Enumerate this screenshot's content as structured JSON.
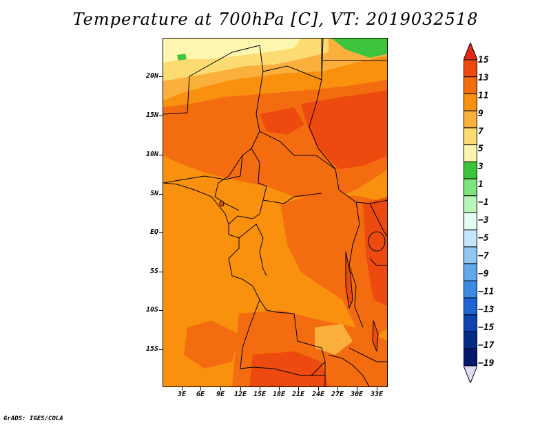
{
  "title": "Temperature at 700hPa [C], VT: 2019032518",
  "credit": "GrADS: IGES/COLA",
  "lat_labels": [
    "20N",
    "15N",
    "10N",
    "5N",
    "EQ",
    "5S",
    "10S",
    "15S"
  ],
  "lon_labels": [
    "3E",
    "6E",
    "9E",
    "12E",
    "15E",
    "18E",
    "21E",
    "24E",
    "27E",
    "30E",
    "33E"
  ],
  "colorbar": {
    "labels": [
      "15",
      "13",
      "11",
      "9",
      "7",
      "5",
      "3",
      "1",
      "−1",
      "−3",
      "−5",
      "−7",
      "−9",
      "−11",
      "−13",
      "−15",
      "−17",
      "−19"
    ],
    "colors": [
      "#e12a0f",
      "#ed4a0f",
      "#f46c10",
      "#f9910e",
      "#fbb03e",
      "#fddb73",
      "#fef6ae",
      "#3cc53c",
      "#7de37d",
      "#b9f4b9",
      "#e3fbf0",
      "#c4e6fb",
      "#90c7f3",
      "#62a9ec",
      "#3b8ae3",
      "#1f64d2",
      "#0f43b1",
      "#072a85",
      "#06186b",
      "#dcdcf5"
    ]
  }
}
